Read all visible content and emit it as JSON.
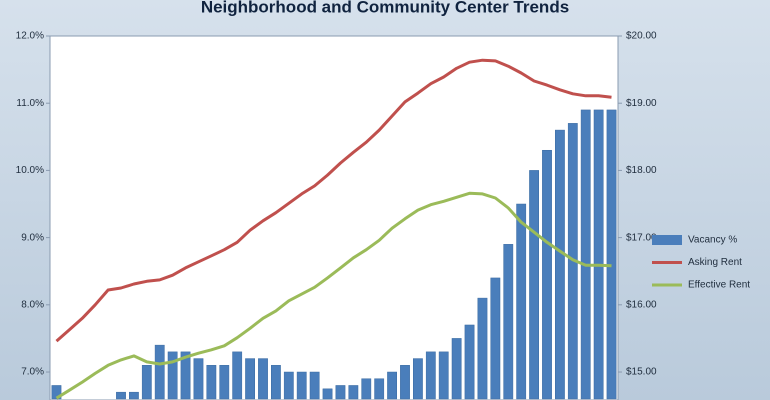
{
  "chart_data": {
    "type": "combo",
    "title": "Neighborhood and Community Center Trends",
    "categories": [
      null,
      null,
      null,
      null,
      null,
      null,
      null,
      null,
      null,
      null,
      null,
      null,
      null,
      null,
      null,
      null,
      null,
      null,
      null,
      null,
      null,
      null,
      null,
      null,
      null,
      null,
      null,
      null,
      null,
      null,
      null,
      null,
      null,
      null,
      null,
      null,
      null,
      null,
      null,
      null,
      null,
      null,
      null,
      null
    ],
    "series": [
      {
        "name": "Vacancy %",
        "type": "bar",
        "color": "#4a7ebb",
        "values": [
          6.8,
          6.6,
          6.6,
          6.6,
          6.6,
          6.7,
          6.7,
          7.1,
          7.4,
          7.3,
          7.3,
          7.2,
          7.1,
          7.1,
          7.3,
          7.2,
          7.2,
          7.1,
          7.0,
          7.0,
          7.0,
          6.75,
          6.8,
          6.8,
          6.9,
          6.9,
          7.0,
          7.1,
          7.2,
          7.3,
          7.3,
          7.5,
          7.7,
          8.1,
          8.4,
          8.9,
          9.5,
          10.0,
          10.3,
          10.6,
          10.7,
          10.9,
          10.9,
          10.9
        ]
      },
      {
        "name": "Asking Rent",
        "type": "line",
        "axis": "y2",
        "color": "#c0504d",
        "values": [
          15.46,
          15.63,
          15.8,
          16.0,
          16.22,
          16.25,
          16.31,
          16.35,
          16.37,
          16.44,
          16.55,
          16.64,
          16.73,
          16.82,
          16.93,
          17.11,
          17.25,
          17.37,
          17.51,
          17.65,
          17.77,
          17.93,
          18.11,
          18.27,
          18.42,
          18.6,
          18.81,
          19.02,
          19.15,
          19.29,
          19.39,
          19.52,
          19.61,
          19.64,
          19.63,
          19.55,
          19.45,
          19.33,
          19.27,
          19.2,
          19.14,
          19.11,
          19.11,
          19.09
        ]
      },
      {
        "name": "Effective Rent",
        "type": "line",
        "axis": "y2",
        "color": "#9bbb59",
        "values": [
          14.61,
          14.73,
          14.85,
          14.98,
          15.1,
          15.18,
          15.24,
          15.15,
          15.12,
          15.15,
          15.22,
          15.28,
          15.33,
          15.39,
          15.51,
          15.65,
          15.8,
          15.91,
          16.06,
          16.16,
          16.26,
          16.4,
          16.55,
          16.7,
          16.82,
          16.96,
          17.14,
          17.28,
          17.41,
          17.49,
          17.54,
          17.6,
          17.66,
          17.65,
          17.59,
          17.44,
          17.23,
          17.08,
          16.93,
          16.8,
          16.67,
          16.59,
          16.59,
          16.58
        ]
      }
    ],
    "ylim": [
      6.6,
      12.0
    ],
    "yticks": [
      {
        "value": 7,
        "label": "7.0%"
      },
      {
        "value": 8,
        "label": "8.0%"
      },
      {
        "value": 9,
        "label": "9.0%"
      },
      {
        "value": 10,
        "label": "10.0%"
      },
      {
        "value": 11,
        "label": "11.0%"
      },
      {
        "value": 12,
        "label": "12.0%"
      }
    ],
    "y2lim": [
      14.6,
      20.0
    ],
    "y2ticks": [
      {
        "value": 15,
        "label": "$15.00"
      },
      {
        "value": 16,
        "label": "$16.00"
      },
      {
        "value": 17,
        "label": "$17.00"
      },
      {
        "value": 18,
        "label": "$18.00"
      },
      {
        "value": 19,
        "label": "$19.00"
      },
      {
        "value": 20,
        "label": "$20.00"
      }
    ],
    "grid": false,
    "legend": "right"
  }
}
